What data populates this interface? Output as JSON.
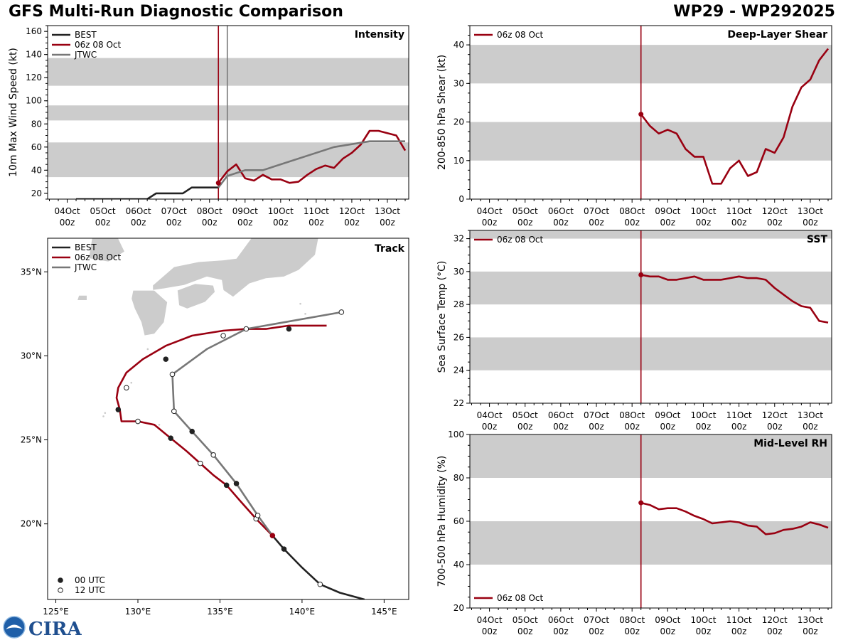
{
  "header": {
    "title": "GFS Multi-Run Diagnostic Comparison",
    "storm_id": "WP29 - WP292025"
  },
  "logo": {
    "text": "CIRA"
  },
  "colors": {
    "best": "#222222",
    "run": "#990011",
    "jtwc": "#777777",
    "band": "#cccccc",
    "land": "#cccccc"
  },
  "chart_data": [
    {
      "id": "intensity",
      "type": "line",
      "title": "Intensity",
      "ylabel": "10m Max Wind Speed (kt)",
      "xlim": [
        -0.55,
        9.6
      ],
      "ylim": [
        15,
        165
      ],
      "yticks": [
        20,
        40,
        60,
        80,
        100,
        120,
        140,
        160
      ],
      "xtick_labels": [
        "04Oct",
        "05Oct",
        "06Oct",
        "07Oct",
        "08Oct",
        "09Oct",
        "10Oct",
        "11Oct",
        "12Oct",
        "13Oct"
      ],
      "xtick_sub": "00z",
      "bands": [
        [
          34,
          64
        ],
        [
          83,
          96
        ],
        [
          113,
          137
        ]
      ],
      "vlines": [
        {
          "x": 4.25,
          "series": "run"
        },
        {
          "x": 4.5,
          "series": "jtwc"
        }
      ],
      "legend": [
        "BEST",
        "06z 08 Oct",
        "JTWC"
      ],
      "series": [
        {
          "name": "BEST",
          "key": "best",
          "x": [
            0.25,
            0.5,
            0.75,
            1.0,
            1.25,
            1.5,
            1.75,
            2.0,
            2.25,
            2.5,
            2.75,
            3.0,
            3.25,
            3.5,
            3.75,
            4.0,
            4.25
          ],
          "y": [
            15,
            15,
            15,
            15,
            15,
            15,
            15,
            15,
            15,
            20,
            20,
            20,
            20,
            25,
            25,
            25,
            25
          ]
        },
        {
          "name": "06z 08 Oct",
          "key": "run",
          "x": [
            4.25,
            4.5,
            4.75,
            5.0,
            5.25,
            5.5,
            5.75,
            6.0,
            6.25,
            6.5,
            6.75,
            7.0,
            7.25,
            7.5,
            7.75,
            8.0,
            8.25,
            8.5,
            8.75,
            9.0,
            9.25,
            9.5
          ],
          "y": [
            29,
            39,
            45,
            33,
            31,
            36,
            32,
            32,
            29,
            30,
            36,
            41,
            44,
            42,
            50,
            55,
            62,
            74,
            74,
            72,
            70,
            57
          ]
        },
        {
          "name": "JTWC",
          "key": "jtwc",
          "x": [
            4.25,
            4.5,
            5.0,
            5.5,
            7.5,
            8.5,
            9.5
          ],
          "y": [
            25,
            35,
            40,
            40,
            60,
            65,
            65
          ]
        }
      ],
      "markers": [
        {
          "series": "run",
          "x": 4.25,
          "y": 29
        }
      ]
    },
    {
      "id": "shear",
      "type": "line",
      "title": "Deep-Layer Shear",
      "ylabel": "200-850 hPa Shear (kt)",
      "xlim": [
        -0.55,
        9.6
      ],
      "ylim": [
        0,
        45
      ],
      "yticks": [
        0,
        10,
        20,
        30,
        40
      ],
      "xtick_labels": [
        "04Oct",
        "05Oct",
        "06Oct",
        "07Oct",
        "08Oct",
        "09Oct",
        "10Oct",
        "11Oct",
        "12Oct",
        "13Oct"
      ],
      "xtick_sub": "00z",
      "bands": [
        [
          10,
          20
        ],
        [
          30,
          40
        ]
      ],
      "vlines": [
        {
          "x": 4.25,
          "series": "run"
        }
      ],
      "legend": [
        "06z 08 Oct"
      ],
      "series": [
        {
          "name": "06z 08 Oct",
          "key": "run",
          "x": [
            4.25,
            4.5,
            4.75,
            5.0,
            5.25,
            5.5,
            5.75,
            6.0,
            6.25,
            6.5,
            6.75,
            7.0,
            7.25,
            7.5,
            7.75,
            8.0,
            8.25,
            8.5,
            8.75,
            9.0,
            9.25,
            9.5
          ],
          "y": [
            22,
            19,
            17,
            18,
            17,
            13,
            11,
            11,
            4,
            4,
            8,
            10,
            6,
            7,
            13,
            12,
            16,
            24,
            29,
            31,
            36,
            39
          ]
        }
      ],
      "markers": [
        {
          "series": "run",
          "x": 4.25,
          "y": 22
        }
      ]
    },
    {
      "id": "sst",
      "type": "line",
      "title": "SST",
      "ylabel": "Sea Surface Temp (°C)",
      "xlim": [
        -0.55,
        9.6
      ],
      "ylim": [
        22,
        32.5
      ],
      "yticks": [
        22,
        24,
        26,
        28,
        30,
        32
      ],
      "xtick_labels": [
        "04Oct",
        "05Oct",
        "06Oct",
        "07Oct",
        "08Oct",
        "09Oct",
        "10Oct",
        "11Oct",
        "12Oct",
        "13Oct"
      ],
      "xtick_sub": "00z",
      "bands": [
        [
          24,
          26
        ],
        [
          28,
          30
        ],
        [
          32,
          34
        ]
      ],
      "vlines": [
        {
          "x": 4.25,
          "series": "run"
        }
      ],
      "legend": [
        "06z 08 Oct"
      ],
      "series": [
        {
          "name": "06z 08 Oct",
          "key": "run",
          "x": [
            4.25,
            4.5,
            4.75,
            5.0,
            5.25,
            5.5,
            5.75,
            6.0,
            6.25,
            6.5,
            6.75,
            7.0,
            7.25,
            7.5,
            7.75,
            8.0,
            8.25,
            8.5,
            8.75,
            9.0,
            9.25,
            9.5
          ],
          "y": [
            29.8,
            29.7,
            29.7,
            29.5,
            29.5,
            29.6,
            29.7,
            29.5,
            29.5,
            29.5,
            29.6,
            29.7,
            29.6,
            29.6,
            29.5,
            29.0,
            28.6,
            28.2,
            27.9,
            27.8,
            27.0,
            26.9
          ]
        }
      ],
      "markers": [
        {
          "series": "run",
          "x": 4.25,
          "y": 29.8
        }
      ]
    },
    {
      "id": "rh",
      "type": "line",
      "title": "Mid-Level RH",
      "ylabel": "700-500 hPa Humidity (%)",
      "xlim": [
        -0.55,
        9.6
      ],
      "ylim": [
        20,
        100
      ],
      "yticks": [
        20,
        40,
        60,
        80,
        100
      ],
      "xtick_labels": [
        "04Oct",
        "05Oct",
        "06Oct",
        "07Oct",
        "08Oct",
        "09Oct",
        "10Oct",
        "11Oct",
        "12Oct",
        "13Oct"
      ],
      "xtick_sub": "00z",
      "bands": [
        [
          40,
          60
        ],
        [
          80,
          100
        ]
      ],
      "vlines": [
        {
          "x": 4.25,
          "series": "run"
        }
      ],
      "legend": [
        "06z 08 Oct"
      ],
      "legend_loc": "bottom-left",
      "series": [
        {
          "name": "06z 08 Oct",
          "key": "run",
          "x": [
            4.25,
            4.5,
            4.75,
            5.0,
            5.25,
            5.5,
            5.75,
            6.0,
            6.25,
            6.5,
            6.75,
            7.0,
            7.25,
            7.5,
            7.75,
            8.0,
            8.25,
            8.5,
            8.75,
            9.0,
            9.25,
            9.5
          ],
          "y": [
            68.5,
            67.5,
            65.5,
            66,
            66,
            64.5,
            62.5,
            61,
            59,
            59.5,
            60,
            59.5,
            58,
            57.5,
            54,
            54.5,
            56,
            56.5,
            57.5,
            59.5,
            58.5,
            57
          ]
        }
      ],
      "markers": [
        {
          "series": "run",
          "x": 4.25,
          "y": 68.5
        }
      ]
    },
    {
      "id": "track",
      "type": "line",
      "title": "Track",
      "xlim": [
        124.5,
        146.5
      ],
      "ylim": [
        15.5,
        37
      ],
      "xticks": [
        125,
        130,
        135,
        140,
        145
      ],
      "xtick_labels": [
        "125°E",
        "130°E",
        "135°E",
        "140°E",
        "145°E"
      ],
      "yticks": [
        20,
        25,
        30,
        35
      ],
      "ytick_labels": [
        "20°N",
        "25°N",
        "30°N",
        "35°N"
      ],
      "legend": [
        "BEST",
        "06z 08 Oct",
        "JTWC"
      ],
      "marker_legend": [
        "00 UTC",
        "12 UTC"
      ],
      "series": [
        {
          "name": "BEST",
          "key": "best",
          "lon": [
            143.8,
            142.3,
            141.1,
            140.0,
            138.9,
            138.2
          ],
          "lat": [
            15.5,
            15.9,
            16.4,
            17.4,
            18.5,
            19.3
          ],
          "points": [
            {
              "lon": 141.1,
              "lat": 16.4,
              "hour": 12
            },
            {
              "lon": 138.9,
              "lat": 18.5,
              "hour": 0
            }
          ]
        },
        {
          "name": "06z 08 Oct",
          "key": "run",
          "lon": [
            138.2,
            137.2,
            136.2,
            135.4,
            134.6,
            133.8,
            133.0,
            132.0,
            131.0,
            130.0,
            129.0,
            128.9,
            128.7,
            128.8,
            129.3,
            130.3,
            131.7,
            133.3,
            135.2,
            136.6,
            137.8,
            139.2,
            141.5
          ],
          "lat": [
            19.3,
            20.3,
            21.4,
            22.3,
            22.9,
            23.6,
            24.3,
            25.1,
            25.9,
            26.1,
            26.1,
            26.8,
            27.5,
            28.1,
            29.0,
            29.8,
            30.6,
            31.2,
            31.5,
            31.6,
            31.6,
            31.8,
            31.8
          ],
          "points": [
            {
              "lon": 137.2,
              "lat": 20.3,
              "hour": 12
            },
            {
              "lon": 135.4,
              "lat": 22.3,
              "hour": 0
            },
            {
              "lon": 133.8,
              "lat": 23.6,
              "hour": 12
            },
            {
              "lon": 132.0,
              "lat": 25.1,
              "hour": 0
            },
            {
              "lon": 130.0,
              "lat": 26.1,
              "hour": 12
            },
            {
              "lon": 128.8,
              "lat": 26.8,
              "hour": 0
            },
            {
              "lon": 129.3,
              "lat": 28.1,
              "hour": 12
            },
            {
              "lon": 131.7,
              "lat": 29.8,
              "hour": 0
            },
            {
              "lon": 135.2,
              "lat": 31.2,
              "hour": 12
            },
            {
              "lon": 139.2,
              "lat": 31.6,
              "hour": 0
            }
          ],
          "start": {
            "lon": 138.2,
            "lat": 19.3
          }
        },
        {
          "name": "JTWC",
          "key": "jtwc",
          "lon": [
            138.2,
            137.3,
            136.0,
            134.6,
            133.3,
            132.2,
            132.1,
            134.2,
            136.6,
            142.4
          ],
          "lat": [
            19.3,
            20.5,
            22.4,
            24.1,
            25.5,
            26.7,
            28.9,
            30.4,
            31.6,
            32.6
          ],
          "points": [
            {
              "lon": 137.3,
              "lat": 20.5,
              "hour": 12
            },
            {
              "lon": 136.0,
              "lat": 22.4,
              "hour": 0
            },
            {
              "lon": 134.6,
              "lat": 24.1,
              "hour": 12
            },
            {
              "lon": 133.3,
              "lat": 25.5,
              "hour": 0
            },
            {
              "lon": 132.2,
              "lat": 26.7,
              "hour": 12
            },
            {
              "lon": 132.1,
              "lat": 28.9,
              "hour": 12
            },
            {
              "lon": 136.6,
              "lat": 31.6,
              "hour": 12
            },
            {
              "lon": 142.4,
              "lat": 32.6,
              "hour": 12
            }
          ]
        }
      ]
    }
  ]
}
